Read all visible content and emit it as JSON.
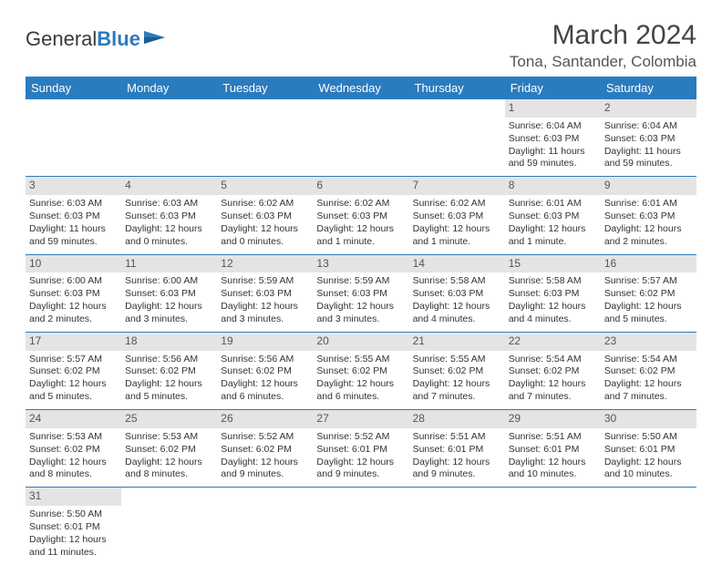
{
  "logo": {
    "text1": "General",
    "text2": "Blue"
  },
  "title": "March 2024",
  "location": "Tona, Santander, Colombia",
  "colors": {
    "header_bg": "#2b7bbf",
    "header_fg": "#ffffff",
    "daynum_bg": "#e4e4e4",
    "row_border": "#2b7bbf",
    "text": "#333333",
    "title_color": "#444444"
  },
  "day_headers": [
    "Sunday",
    "Monday",
    "Tuesday",
    "Wednesday",
    "Thursday",
    "Friday",
    "Saturday"
  ],
  "weeks": [
    [
      null,
      null,
      null,
      null,
      null,
      {
        "n": "1",
        "sr": "Sunrise: 6:04 AM",
        "ss": "Sunset: 6:03 PM",
        "dl1": "Daylight: 11 hours",
        "dl2": "and 59 minutes."
      },
      {
        "n": "2",
        "sr": "Sunrise: 6:04 AM",
        "ss": "Sunset: 6:03 PM",
        "dl1": "Daylight: 11 hours",
        "dl2": "and 59 minutes."
      }
    ],
    [
      {
        "n": "3",
        "sr": "Sunrise: 6:03 AM",
        "ss": "Sunset: 6:03 PM",
        "dl1": "Daylight: 11 hours",
        "dl2": "and 59 minutes."
      },
      {
        "n": "4",
        "sr": "Sunrise: 6:03 AM",
        "ss": "Sunset: 6:03 PM",
        "dl1": "Daylight: 12 hours",
        "dl2": "and 0 minutes."
      },
      {
        "n": "5",
        "sr": "Sunrise: 6:02 AM",
        "ss": "Sunset: 6:03 PM",
        "dl1": "Daylight: 12 hours",
        "dl2": "and 0 minutes."
      },
      {
        "n": "6",
        "sr": "Sunrise: 6:02 AM",
        "ss": "Sunset: 6:03 PM",
        "dl1": "Daylight: 12 hours",
        "dl2": "and 1 minute."
      },
      {
        "n": "7",
        "sr": "Sunrise: 6:02 AM",
        "ss": "Sunset: 6:03 PM",
        "dl1": "Daylight: 12 hours",
        "dl2": "and 1 minute."
      },
      {
        "n": "8",
        "sr": "Sunrise: 6:01 AM",
        "ss": "Sunset: 6:03 PM",
        "dl1": "Daylight: 12 hours",
        "dl2": "and 1 minute."
      },
      {
        "n": "9",
        "sr": "Sunrise: 6:01 AM",
        "ss": "Sunset: 6:03 PM",
        "dl1": "Daylight: 12 hours",
        "dl2": "and 2 minutes."
      }
    ],
    [
      {
        "n": "10",
        "sr": "Sunrise: 6:00 AM",
        "ss": "Sunset: 6:03 PM",
        "dl1": "Daylight: 12 hours",
        "dl2": "and 2 minutes."
      },
      {
        "n": "11",
        "sr": "Sunrise: 6:00 AM",
        "ss": "Sunset: 6:03 PM",
        "dl1": "Daylight: 12 hours",
        "dl2": "and 3 minutes."
      },
      {
        "n": "12",
        "sr": "Sunrise: 5:59 AM",
        "ss": "Sunset: 6:03 PM",
        "dl1": "Daylight: 12 hours",
        "dl2": "and 3 minutes."
      },
      {
        "n": "13",
        "sr": "Sunrise: 5:59 AM",
        "ss": "Sunset: 6:03 PM",
        "dl1": "Daylight: 12 hours",
        "dl2": "and 3 minutes."
      },
      {
        "n": "14",
        "sr": "Sunrise: 5:58 AM",
        "ss": "Sunset: 6:03 PM",
        "dl1": "Daylight: 12 hours",
        "dl2": "and 4 minutes."
      },
      {
        "n": "15",
        "sr": "Sunrise: 5:58 AM",
        "ss": "Sunset: 6:03 PM",
        "dl1": "Daylight: 12 hours",
        "dl2": "and 4 minutes."
      },
      {
        "n": "16",
        "sr": "Sunrise: 5:57 AM",
        "ss": "Sunset: 6:02 PM",
        "dl1": "Daylight: 12 hours",
        "dl2": "and 5 minutes."
      }
    ],
    [
      {
        "n": "17",
        "sr": "Sunrise: 5:57 AM",
        "ss": "Sunset: 6:02 PM",
        "dl1": "Daylight: 12 hours",
        "dl2": "and 5 minutes."
      },
      {
        "n": "18",
        "sr": "Sunrise: 5:56 AM",
        "ss": "Sunset: 6:02 PM",
        "dl1": "Daylight: 12 hours",
        "dl2": "and 5 minutes."
      },
      {
        "n": "19",
        "sr": "Sunrise: 5:56 AM",
        "ss": "Sunset: 6:02 PM",
        "dl1": "Daylight: 12 hours",
        "dl2": "and 6 minutes."
      },
      {
        "n": "20",
        "sr": "Sunrise: 5:55 AM",
        "ss": "Sunset: 6:02 PM",
        "dl1": "Daylight: 12 hours",
        "dl2": "and 6 minutes."
      },
      {
        "n": "21",
        "sr": "Sunrise: 5:55 AM",
        "ss": "Sunset: 6:02 PM",
        "dl1": "Daylight: 12 hours",
        "dl2": "and 7 minutes."
      },
      {
        "n": "22",
        "sr": "Sunrise: 5:54 AM",
        "ss": "Sunset: 6:02 PM",
        "dl1": "Daylight: 12 hours",
        "dl2": "and 7 minutes."
      },
      {
        "n": "23",
        "sr": "Sunrise: 5:54 AM",
        "ss": "Sunset: 6:02 PM",
        "dl1": "Daylight: 12 hours",
        "dl2": "and 7 minutes."
      }
    ],
    [
      {
        "n": "24",
        "sr": "Sunrise: 5:53 AM",
        "ss": "Sunset: 6:02 PM",
        "dl1": "Daylight: 12 hours",
        "dl2": "and 8 minutes."
      },
      {
        "n": "25",
        "sr": "Sunrise: 5:53 AM",
        "ss": "Sunset: 6:02 PM",
        "dl1": "Daylight: 12 hours",
        "dl2": "and 8 minutes."
      },
      {
        "n": "26",
        "sr": "Sunrise: 5:52 AM",
        "ss": "Sunset: 6:02 PM",
        "dl1": "Daylight: 12 hours",
        "dl2": "and 9 minutes."
      },
      {
        "n": "27",
        "sr": "Sunrise: 5:52 AM",
        "ss": "Sunset: 6:01 PM",
        "dl1": "Daylight: 12 hours",
        "dl2": "and 9 minutes."
      },
      {
        "n": "28",
        "sr": "Sunrise: 5:51 AM",
        "ss": "Sunset: 6:01 PM",
        "dl1": "Daylight: 12 hours",
        "dl2": "and 9 minutes."
      },
      {
        "n": "29",
        "sr": "Sunrise: 5:51 AM",
        "ss": "Sunset: 6:01 PM",
        "dl1": "Daylight: 12 hours",
        "dl2": "and 10 minutes."
      },
      {
        "n": "30",
        "sr": "Sunrise: 5:50 AM",
        "ss": "Sunset: 6:01 PM",
        "dl1": "Daylight: 12 hours",
        "dl2": "and 10 minutes."
      }
    ],
    [
      {
        "n": "31",
        "sr": "Sunrise: 5:50 AM",
        "ss": "Sunset: 6:01 PM",
        "dl1": "Daylight: 12 hours",
        "dl2": "and 11 minutes."
      },
      null,
      null,
      null,
      null,
      null,
      null
    ]
  ]
}
